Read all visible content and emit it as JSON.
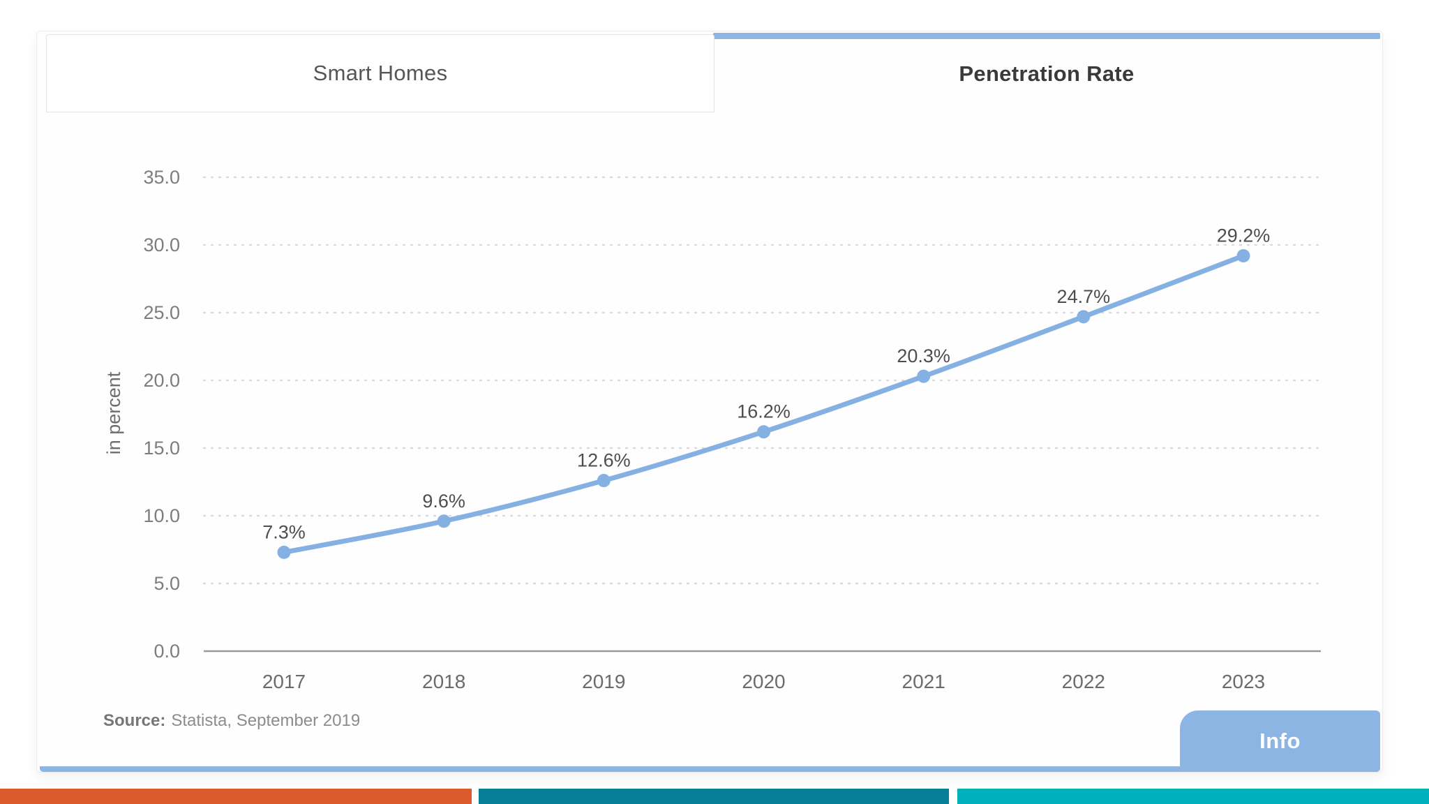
{
  "tabs": [
    {
      "label": "Smart Homes",
      "active": false
    },
    {
      "label": "Penetration Rate",
      "active": true
    }
  ],
  "source": {
    "prefix": "Source:",
    "text": "Statista, September 2019"
  },
  "info": {
    "label": "Info"
  },
  "colors": {
    "accent_blue": "#8CB5E4",
    "line_blue": "#85B1E2",
    "gridline": "#dadada",
    "axis_line": "#999999",
    "tick_text": "#7d7d7d",
    "x_tick_text": "#6b6b6b",
    "data_label_text": "#4e4e4e",
    "footer_orange": "#DC5B2C",
    "footer_dark_teal": "#087E96",
    "footer_teal": "#00B1BB"
  },
  "chart_data": {
    "type": "line",
    "title": "Penetration Rate",
    "categories": [
      "2017",
      "2018",
      "2019",
      "2020",
      "2021",
      "2022",
      "2023"
    ],
    "values": [
      7.3,
      9.6,
      12.6,
      16.2,
      20.3,
      24.7,
      29.2
    ],
    "data_labels": [
      "7.3%",
      "9.6%",
      "12.6%",
      "16.2%",
      "20.3%",
      "24.7%",
      "29.2%"
    ],
    "series_name": "Penetration Rate",
    "xlabel": "",
    "ylabel": "in percent",
    "ylim": [
      0,
      35
    ],
    "ytick_step": 5,
    "ytick_labels": [
      "0.0",
      "5.0",
      "10.0",
      "15.0",
      "20.0",
      "25.0",
      "30.0",
      "35.0"
    ],
    "grid": "horizontal-dotted",
    "legend": "none"
  }
}
